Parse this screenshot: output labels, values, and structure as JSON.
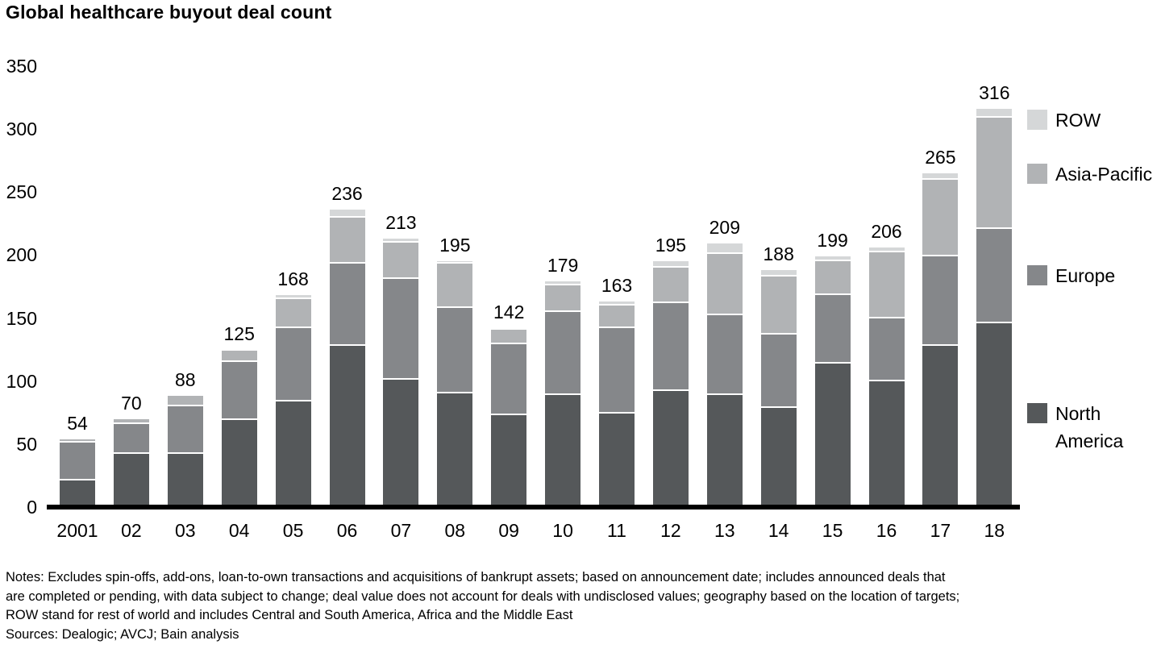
{
  "title": "Global healthcare buyout deal count",
  "chart_data": {
    "type": "bar",
    "stacked": true,
    "title": "Global healthcare buyout deal count",
    "categories": [
      "2001",
      "02",
      "03",
      "04",
      "05",
      "06",
      "07",
      "08",
      "09",
      "10",
      "11",
      "12",
      "13",
      "14",
      "15",
      "16",
      "17",
      "18"
    ],
    "series": [
      {
        "name": "North America",
        "color": "#55585a",
        "values": [
          21,
          42,
          42,
          69,
          84,
          128,
          101,
          90,
          73,
          89,
          74,
          92,
          89,
          79,
          114,
          100,
          128,
          146
        ]
      },
      {
        "name": "Europe",
        "color": "#85878a",
        "values": [
          30,
          24,
          38,
          46,
          58,
          65,
          80,
          68,
          56,
          66,
          68,
          70,
          63,
          58,
          54,
          50,
          71,
          75
        ]
      },
      {
        "name": "Asia-Pacific",
        "color": "#b1b3b5",
        "values": [
          3,
          4,
          8,
          9,
          23,
          37,
          29,
          35,
          12,
          21,
          18,
          28,
          49,
          46,
          27,
          52,
          61,
          88
        ]
      },
      {
        "name": "ROW",
        "color": "#d5d7d8",
        "values": [
          0,
          0,
          0,
          1,
          3,
          6,
          3,
          2,
          1,
          3,
          3,
          5,
          8,
          5,
          4,
          4,
          5,
          7
        ]
      }
    ],
    "totals": [
      54,
      70,
      88,
      125,
      168,
      236,
      213,
      195,
      142,
      179,
      163,
      195,
      209,
      188,
      199,
      206,
      265,
      316
    ],
    "xlabel": "",
    "ylabel": "",
    "ylim": [
      0,
      350
    ],
    "yticks": [
      0,
      50,
      100,
      150,
      200,
      250,
      300,
      350
    ],
    "grid": false,
    "legend_position": "right",
    "legend_order": [
      "ROW",
      "Asia-Pacific",
      "Europe",
      "North America"
    ]
  },
  "legend": {
    "items": [
      {
        "label": "ROW"
      },
      {
        "label": "Asia-Pacific"
      },
      {
        "label": "Europe"
      },
      {
        "label": "North America"
      }
    ]
  },
  "notes": {
    "line1": "Notes: Excludes spin-offs, add-ons, loan-to-own transactions and acquisitions of bankrupt assets; based on announcement date; includes announced deals that",
    "line2": "are completed or pending, with data subject to change; deal value does not account for deals with undisclosed values; geography based on the location of targets;",
    "line3": "ROW stand for rest of world and includes Central and South America, Africa and the Middle East",
    "sources": "Sources: Dealogic; AVCJ; Bain analysis"
  }
}
